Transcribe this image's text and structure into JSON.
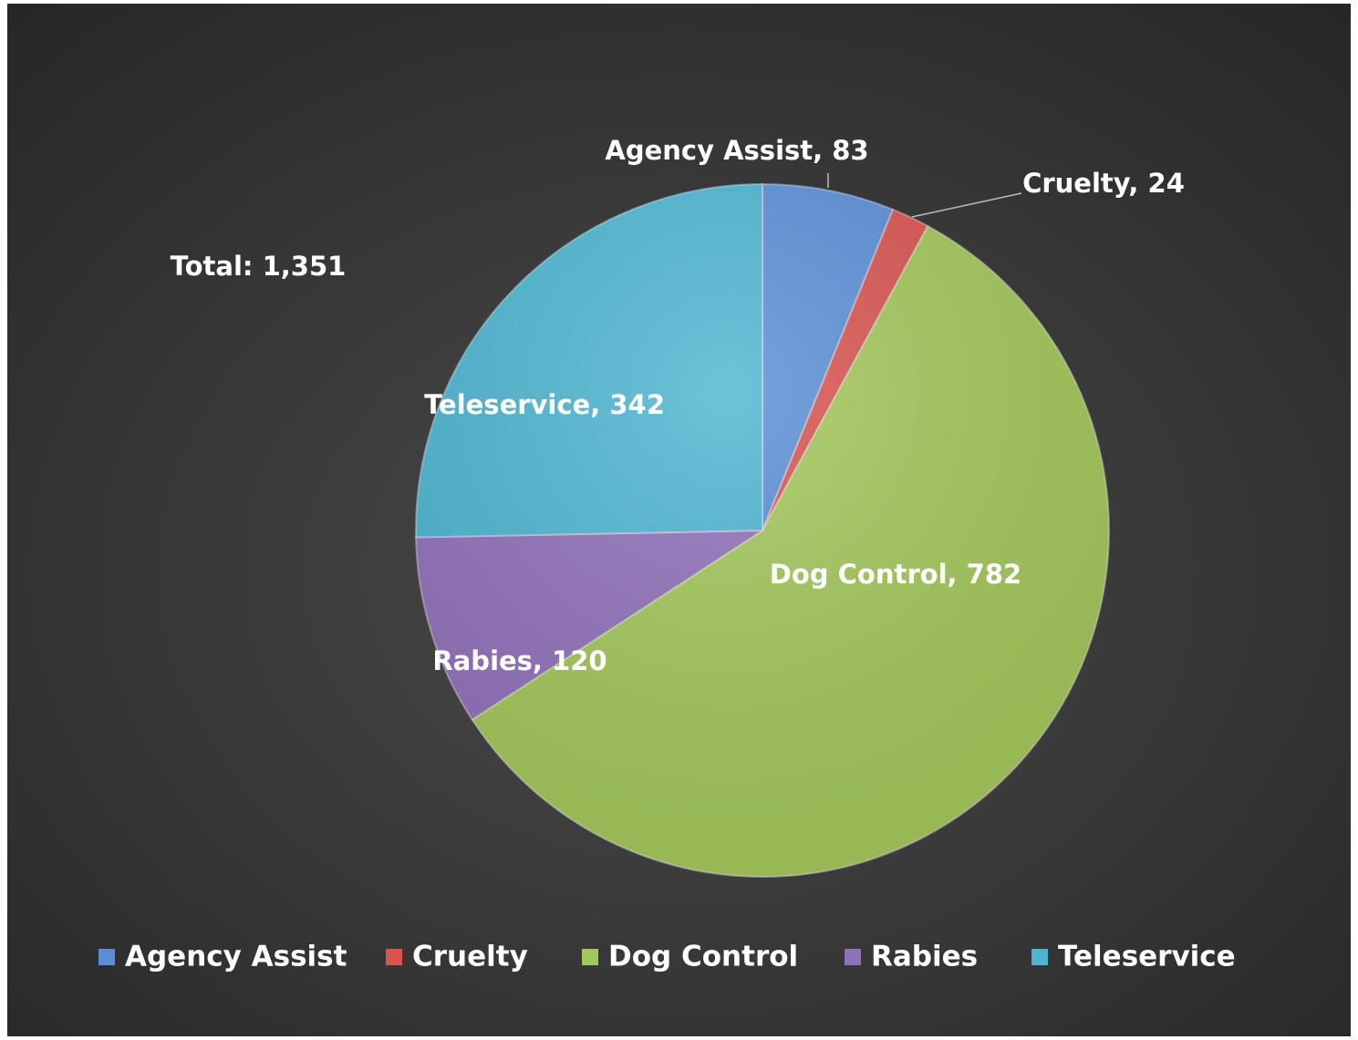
{
  "chart_data": {
    "type": "pie",
    "annotation": "Total:  1,351",
    "categories": [
      "Agency Assist",
      "Cruelty",
      "Dog Control",
      "Rabies",
      "Teleservice"
    ],
    "values": [
      83,
      24,
      782,
      120,
      342
    ],
    "value_labels": [
      "Agency Assist, 83",
      "Cruelty, 24",
      "Dog Control, 782",
      "Rabies, 120",
      "Teleservice, 342"
    ],
    "colors": [
      "#5a8fd8",
      "#d9534f",
      "#a3c75a",
      "#9171bb",
      "#4cb6d2"
    ],
    "legend": "bottom"
  }
}
